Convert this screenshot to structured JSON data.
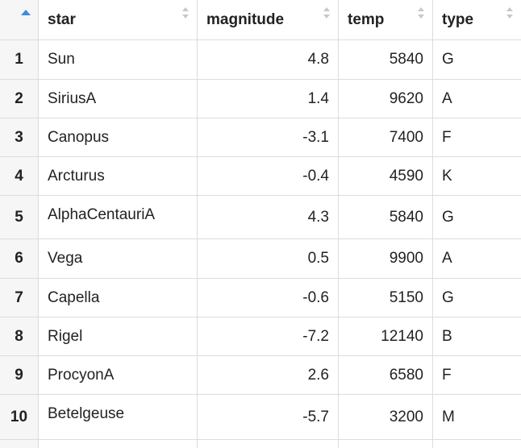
{
  "table": {
    "columns": [
      {
        "key": "index",
        "label": ""
      },
      {
        "key": "star",
        "label": "star"
      },
      {
        "key": "magnitude",
        "label": "magnitude"
      },
      {
        "key": "temp",
        "label": "temp"
      },
      {
        "key": "type",
        "label": "type"
      }
    ],
    "sort": {
      "column": "index",
      "direction": "ascending"
    },
    "rows": [
      {
        "index": "1",
        "star": "Sun",
        "magnitude": "4.8",
        "temp": "5840",
        "type": "G"
      },
      {
        "index": "2",
        "star": "SiriusA",
        "magnitude": "1.4",
        "temp": "9620",
        "type": "A"
      },
      {
        "index": "3",
        "star": "Canopus",
        "magnitude": "-3.1",
        "temp": "7400",
        "type": "F"
      },
      {
        "index": "4",
        "star": "Arcturus",
        "magnitude": "-0.4",
        "temp": "4590",
        "type": "K"
      },
      {
        "index": "5",
        "star": "AlphaCentauriA",
        "magnitude": "4.3",
        "temp": "5840",
        "type": "G"
      },
      {
        "index": "6",
        "star": "Vega",
        "magnitude": "0.5",
        "temp": "9900",
        "type": "A"
      },
      {
        "index": "7",
        "star": "Capella",
        "magnitude": "-0.6",
        "temp": "5150",
        "type": "G"
      },
      {
        "index": "8",
        "star": "Rigel",
        "magnitude": "-7.2",
        "temp": "12140",
        "type": "B"
      },
      {
        "index": "9",
        "star": "ProcyonA",
        "magnitude": "2.6",
        "temp": "6580",
        "type": "F"
      },
      {
        "index": "10",
        "star": "Betelgeuse",
        "magnitude": "-5.7",
        "temp": "3200",
        "type": "M"
      }
    ]
  },
  "colors": {
    "sort_active": "#3c8dde",
    "sort_inactive": "#c8c8c8",
    "border": "#dcdcdc",
    "index_background": "#f6f6f6"
  }
}
